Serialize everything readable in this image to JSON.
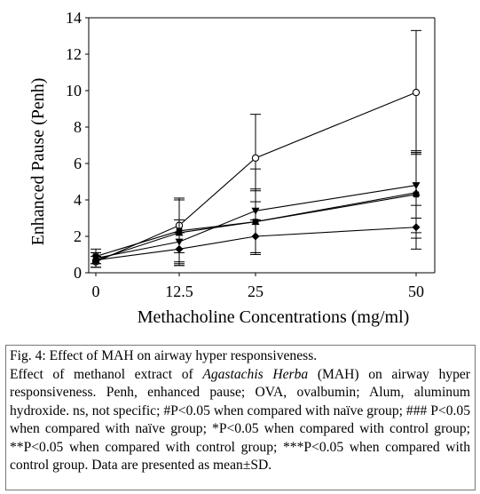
{
  "chart_data": {
    "type": "line",
    "title": "",
    "xlabel": "Methacholine Concentrations (mg/ml)",
    "ylabel": "Enhanced Pause (Penh)",
    "x": [
      0,
      12.5,
      25,
      50
    ],
    "x_tick_labels": [
      "0",
      "12.5",
      "25",
      "50"
    ],
    "y_ticks": [
      0,
      2,
      4,
      6,
      8,
      10,
      12,
      14
    ],
    "ylim": [
      0,
      14
    ],
    "grid": false,
    "legend": "none",
    "series": [
      {
        "marker": "open-circle",
        "values": [
          0.6,
          2.6,
          6.3,
          9.9
        ],
        "errors": [
          0.3,
          1.5,
          2.4,
          3.4
        ]
      },
      {
        "marker": "triangle-down",
        "values": [
          0.8,
          1.7,
          3.4,
          4.8
        ],
        "errors": [
          0.3,
          1.2,
          2.3,
          1.8
        ]
      },
      {
        "marker": "square",
        "values": [
          0.9,
          2.3,
          2.8,
          4.3
        ],
        "errors": [
          0.4,
          1.7,
          1.8,
          2.4
        ]
      },
      {
        "marker": "triangle-up",
        "values": [
          0.7,
          2.2,
          2.8,
          4.4
        ],
        "errors": [
          0.4,
          1.8,
          1.7,
          2.2
        ]
      },
      {
        "marker": "diamond",
        "values": [
          0.7,
          1.3,
          2.0,
          2.5
        ],
        "errors": [
          0.4,
          0.9,
          0.9,
          1.2
        ]
      }
    ]
  },
  "caption": {
    "fig_label": "Fig. 4: Effect of MAH on airway hyper responsiveness.",
    "text_before_italic": "Effect of methanol extract of ",
    "italic": "Agastachis Herba",
    "text_after_italic": " (MAH) on airway hyper responsiveness. Penh, enhanced pause; OVA, ovalbumin; Alum, aluminum hydroxide. ns, not specific; #P<0.05 when compared with naïve group; ### P<0.05 when compared with naïve group; *P<0.05 when compared with control group; **P<0.05 when compared with control group; ***P<0.05 when compared with control group. Data are presented as mean±SD."
  }
}
